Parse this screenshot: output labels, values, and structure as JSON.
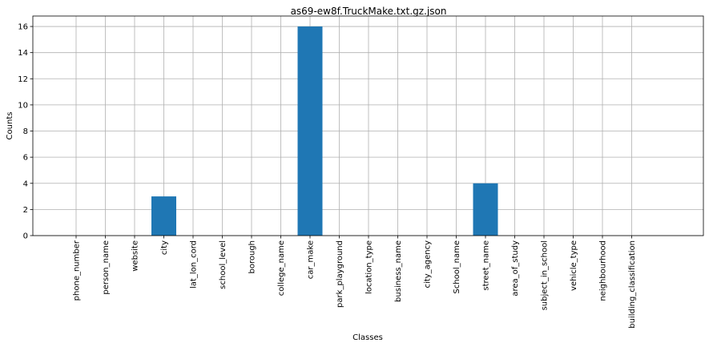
{
  "chart_data": {
    "type": "bar",
    "title": "as69-ew8f.TruckMake.txt.gz.json",
    "xlabel": "Classes",
    "ylabel": "Counts",
    "categories": [
      "phone_number",
      "person_name",
      "website",
      "city",
      "lat_lon_cord",
      "school_level",
      "borough",
      "college_name",
      "car_make",
      "park_playground",
      "location_type",
      "business_name",
      "city_agency",
      "School_name",
      "street_name",
      "area_of_study",
      "subject_in_school",
      "vehicle_type",
      "neighbourhood",
      "building_classification"
    ],
    "values": [
      0,
      0,
      0,
      3,
      0,
      0,
      0,
      0,
      16,
      0,
      0,
      0,
      0,
      0,
      4,
      0,
      0,
      0,
      0,
      0
    ],
    "yticks": [
      "0",
      "2",
      "4",
      "6",
      "8",
      "10",
      "12",
      "14",
      "16"
    ],
    "ylim": [
      0,
      16.8
    ],
    "grid": true,
    "bar_color": "#1f77b4"
  }
}
